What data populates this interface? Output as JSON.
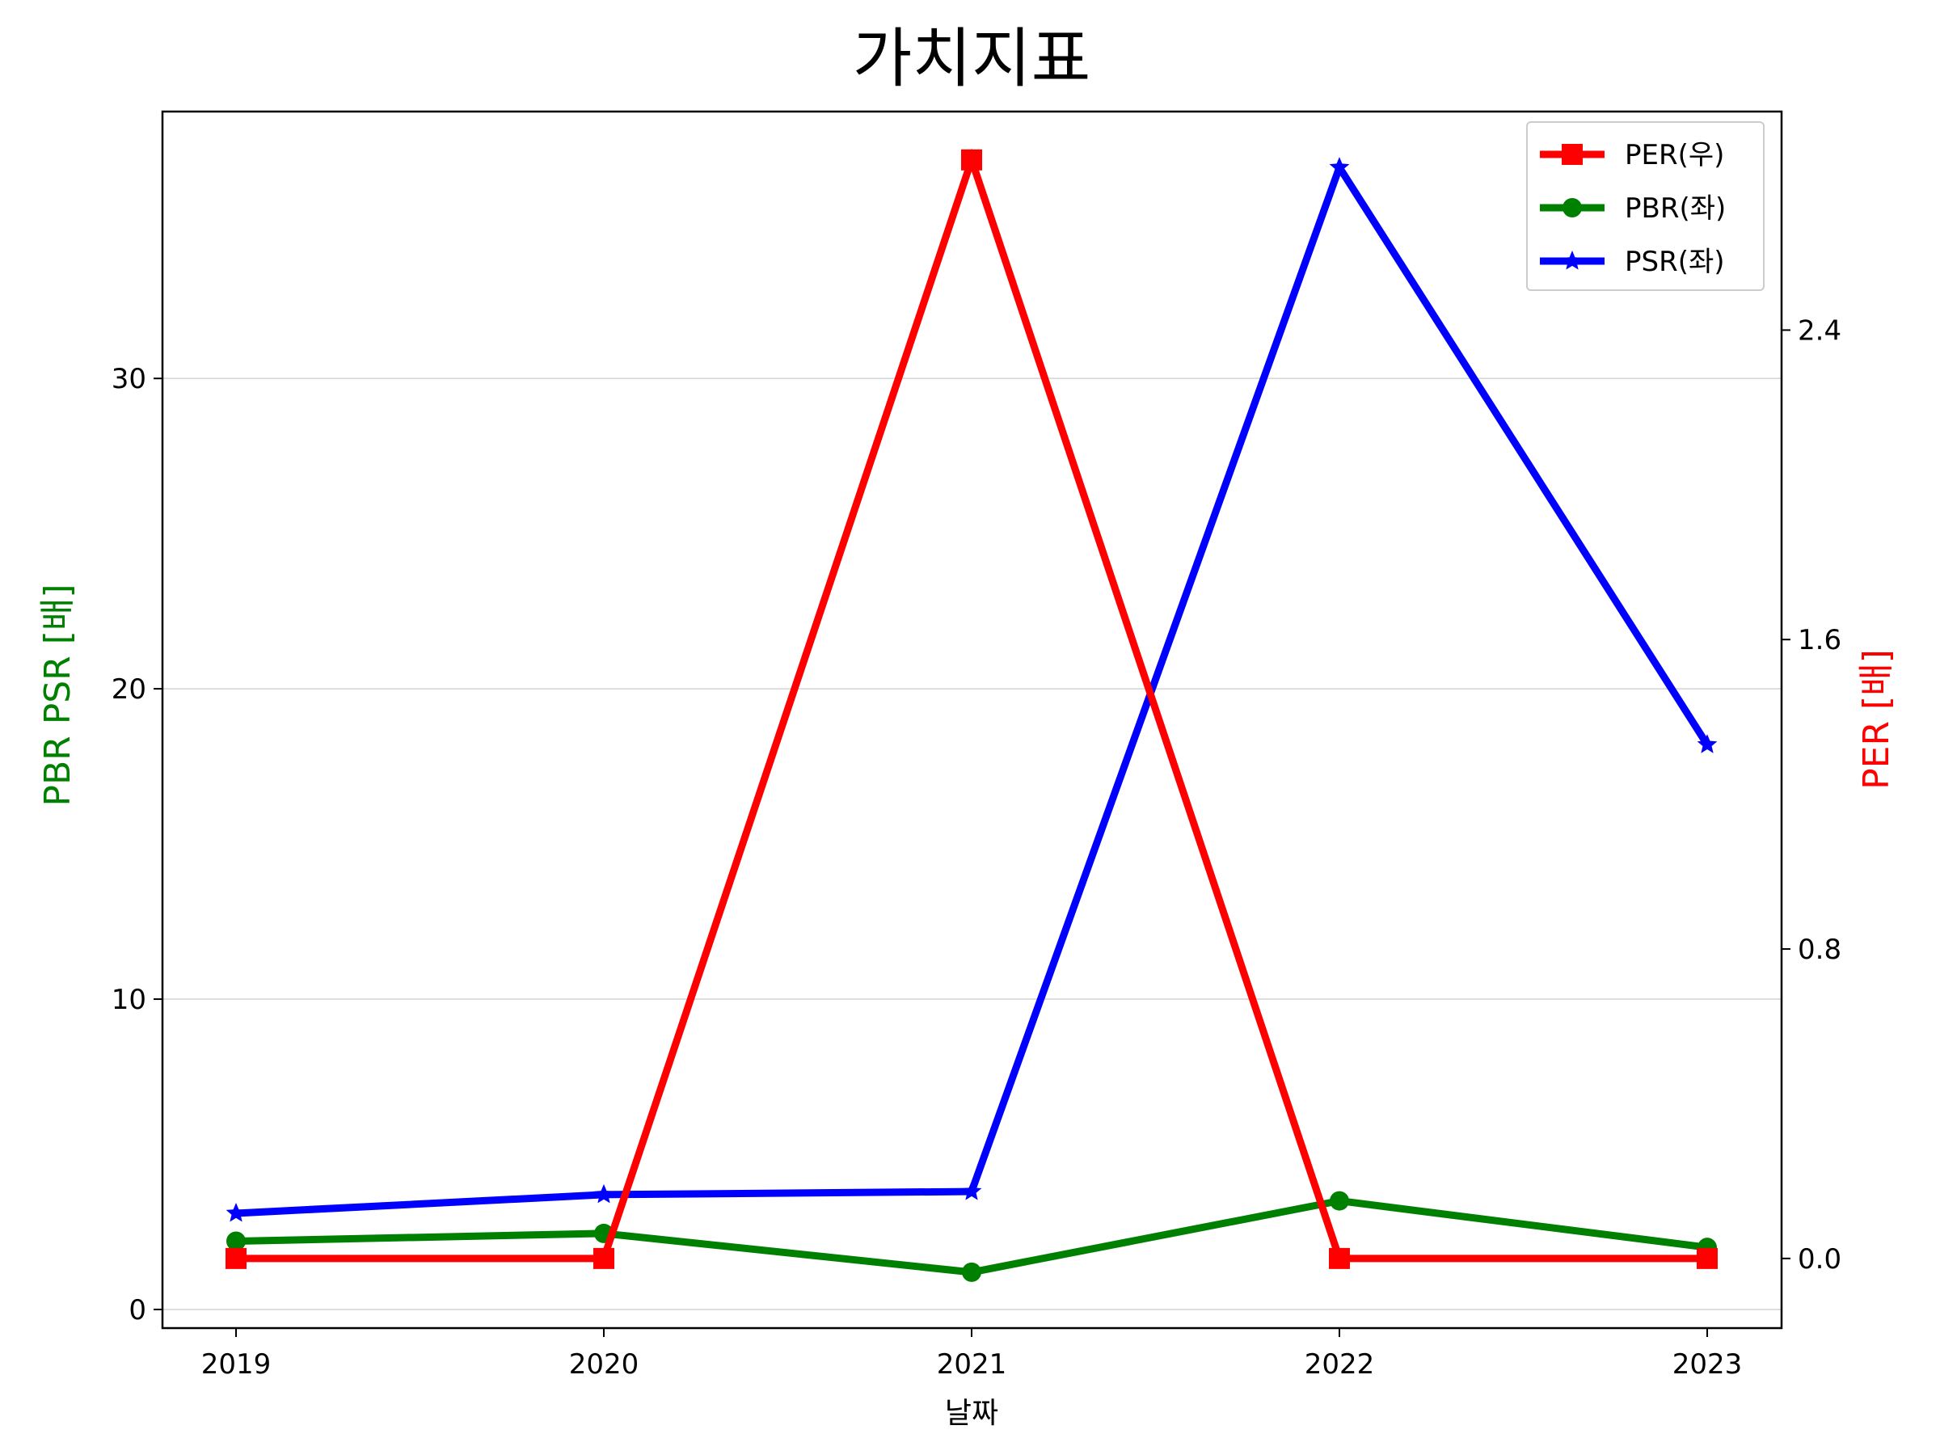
{
  "chart_data": {
    "type": "line",
    "title": "가치지표",
    "xlabel": "날짜",
    "ylabel_left": "PBR PSR [배]",
    "ylabel_right": "PER [배]",
    "categories": [
      "2019",
      "2020",
      "2021",
      "2022",
      "2023"
    ],
    "left_axis": {
      "ylim": [
        -0.6,
        38.6
      ],
      "ticks": [
        0,
        10,
        20,
        30
      ],
      "tick_labels": [
        "0",
        "10",
        "20",
        "30"
      ],
      "grid": true
    },
    "right_axis": {
      "ylim": [
        -0.18,
        2.965
      ],
      "ticks": [
        0.0,
        0.8,
        1.6,
        2.4
      ],
      "tick_labels": [
        "0.0",
        "0.8",
        "1.6",
        "2.4"
      ]
    },
    "series": [
      {
        "name": "PER(우)",
        "axis": "right",
        "color": "#ff0000",
        "marker": "square",
        "values": [
          0.0,
          0.0,
          2.84,
          0.0,
          0.0
        ]
      },
      {
        "name": "PBR(좌)",
        "axis": "left",
        "color": "#008000",
        "marker": "circle",
        "values": [
          2.2,
          2.45,
          1.2,
          3.5,
          2.0
        ]
      },
      {
        "name": "PSR(좌)",
        "axis": "left",
        "color": "#0000ff",
        "marker": "star",
        "values": [
          3.1,
          3.7,
          3.8,
          36.8,
          18.2
        ]
      }
    ],
    "legend": {
      "position": "top-right",
      "entries": [
        "PER(우)",
        "PBR(좌)",
        "PSR(좌)"
      ]
    }
  },
  "colors": {
    "ylabel_left": "#008000",
    "ylabel_right": "#ff0000",
    "grid": "#d3d3d3"
  }
}
